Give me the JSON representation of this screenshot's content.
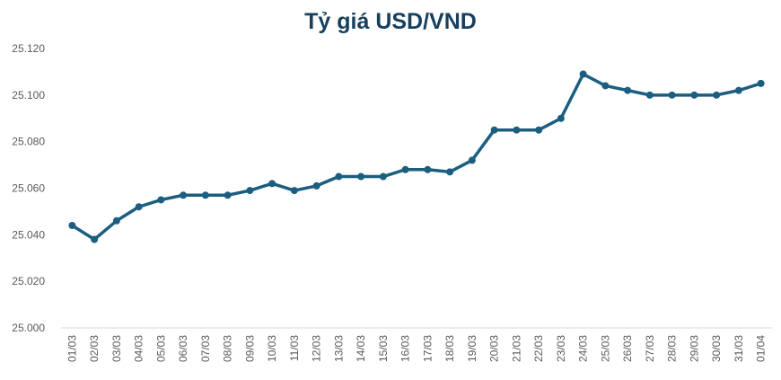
{
  "chart_data": {
    "type": "line",
    "title": "Tỷ giá USD/VND",
    "xlabel": "",
    "ylabel": "",
    "ylim": [
      25000,
      25120
    ],
    "yticks": [
      25000,
      25020,
      25040,
      25060,
      25080,
      25100,
      25120
    ],
    "ytick_labels": [
      "25.000",
      "25.020",
      "25.040",
      "25.060",
      "25.080",
      "25.100",
      "25.120"
    ],
    "grid": false,
    "legend": "none",
    "color": "#1b5e80",
    "categories": [
      "01/03",
      "02/03",
      "03/03",
      "04/03",
      "05/03",
      "06/03",
      "07/03",
      "08/03",
      "09/03",
      "10/03",
      "11/03",
      "12/03",
      "13/03",
      "14/03",
      "15/03",
      "16/03",
      "17/03",
      "18/03",
      "19/03",
      "20/03",
      "21/03",
      "22/03",
      "23/03",
      "24/03",
      "25/03",
      "26/03",
      "27/03",
      "28/03",
      "29/03",
      "30/03",
      "31/03",
      "01/04"
    ],
    "series": [
      {
        "name": "USD/VND",
        "values": [
          25044,
          25038,
          25046,
          25052,
          25055,
          25057,
          25057,
          25057,
          25059,
          25062,
          25059,
          25061,
          25065,
          25065,
          25065,
          25068,
          25068,
          25067,
          25072,
          25085,
          25085,
          25085,
          25090,
          25109,
          25104,
          25102,
          25100,
          25100,
          25100,
          25100,
          25102,
          25105
        ]
      }
    ]
  }
}
